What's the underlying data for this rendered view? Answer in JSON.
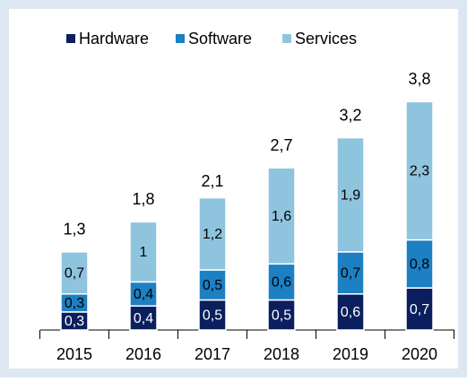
{
  "chart_data": {
    "type": "stacked_bar",
    "categories": [
      "2015",
      "2016",
      "2017",
      "2018",
      "2019",
      "2020"
    ],
    "series": [
      {
        "name": "Hardware",
        "color": "#0b1f5e",
        "values": [
          0.3,
          0.4,
          0.5,
          0.5,
          0.6,
          0.7
        ],
        "value_labels": [
          "0,3",
          "0,4",
          "0,5",
          "0,5",
          "0,6",
          "0,7"
        ]
      },
      {
        "name": "Software",
        "color": "#1c80c3",
        "values": [
          0.3,
          0.4,
          0.5,
          0.6,
          0.7,
          0.8
        ],
        "value_labels": [
          "0,3",
          "0,4",
          "0,5",
          "0,6",
          "0,7",
          "0,8"
        ]
      },
      {
        "name": "Services",
        "color": "#8fc4df",
        "values": [
          0.7,
          1,
          1.2,
          1.6,
          1.9,
          2.3
        ],
        "value_labels": [
          "0,7",
          "1",
          "1,2",
          "1,6",
          "1,9",
          "2,3"
        ]
      }
    ],
    "totals": {
      "values": [
        1.3,
        1.8,
        2.1,
        2.7,
        3.2,
        3.8
      ],
      "value_labels": [
        "1,3",
        "1,8",
        "2,1",
        "2,7",
        "3,2",
        "3,8"
      ]
    },
    "legend": "top"
  }
}
